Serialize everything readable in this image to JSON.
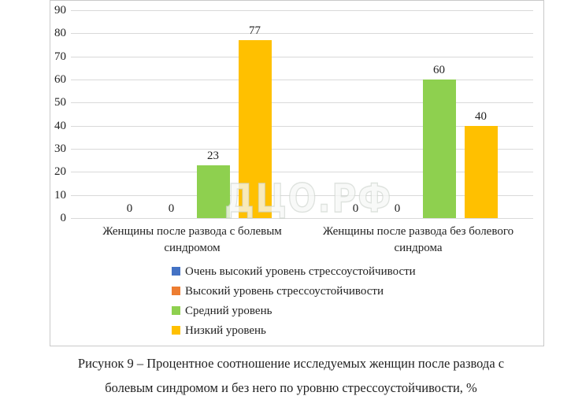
{
  "watermark_text": "ДЦО.РФ",
  "figure_caption": {
    "line1": "Рисунок 9 – Процентное соотношение исследуемых женщин после развода с",
    "line2": "болевым синдромом и без него по уровню стрессоустойчивости, %"
  },
  "chart_data": {
    "type": "bar",
    "title": "",
    "xlabel": "",
    "ylabel": "",
    "categories": [
      "Женщины после развода с болевым синдромом",
      "Женщины после развода без болевого синдрома"
    ],
    "series": [
      {
        "name": "Очень высокий уровень стрессоустойчивости",
        "color": "#4472C4",
        "values": [
          0,
          0
        ]
      },
      {
        "name": "Высокий уровень стрессоустойчивости",
        "color": "#ED7D31",
        "values": [
          0,
          0
        ]
      },
      {
        "name": "Средний уровень",
        "color": "#8ED04F",
        "values": [
          23,
          60
        ]
      },
      {
        "name": "Низкий уровень",
        "color": "#FFC000",
        "values": [
          77,
          40
        ]
      }
    ],
    "ylim": [
      0,
      90
    ],
    "ytick_step": 10,
    "gridlines": true,
    "value_labels_shown": true,
    "legend_position": "bottom"
  }
}
